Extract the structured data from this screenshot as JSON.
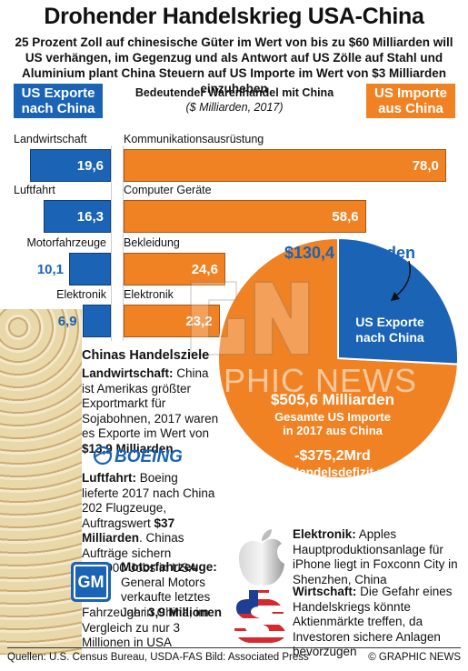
{
  "title": "Drohender Handelskrieg USA-China",
  "subtitle": "25 Prozent Zoll auf chinesische Güter im Wert von bis zu $60 Milliarden will US verhängen, im Gegenzug und als Antwort auf US Zölle auf Stahl und Aluminium plant China Steuern auf US Importe im Wert von $3 Milliarden einzuheben",
  "legend": {
    "exports": "US Exporte nach China",
    "imports": "US Importe aus China"
  },
  "chart_heading": "Bedeutender Warenhandel mit China",
  "chart_unit": "($ Milliarden, 2017)",
  "colors": {
    "exports": "#1a63b5",
    "imports": "#f08223"
  },
  "chart_data": [
    {
      "type": "bar",
      "title": "Bedeutender Warenhandel mit China",
      "subtitle": "($ Milliarden, 2017)",
      "series": [
        {
          "name": "US Exporte nach China",
          "categories": [
            "Landwirtschaft",
            "Luftfahrt",
            "Motorfahrzeuge",
            "Elektronik"
          ],
          "values": [
            19.6,
            16.3,
            10.1,
            6.9
          ],
          "labels": [
            "19,6",
            "16,3",
            "10,1",
            "6,9"
          ]
        },
        {
          "name": "US Importe aus China",
          "categories": [
            "Kommunikationsausrüstung",
            "Computer Geräte",
            "Bekleidung",
            "Elektronik"
          ],
          "values": [
            78.0,
            58.6,
            24.6,
            23.2
          ],
          "labels": [
            "78,0",
            "58,6",
            "24,6",
            "23,2"
          ]
        }
      ]
    },
    {
      "type": "pie",
      "slices": [
        {
          "name": "US Exporte nach China",
          "value": 130.4
        },
        {
          "name": "US Importe in 2017 aus China",
          "value": 375.2
        }
      ]
    }
  ],
  "pie": {
    "exports_value": "$130,4 Milliarden",
    "exports_label": "US Exporte nach China",
    "total_value": "$505,6 Milliarden",
    "total_label": "Gesamte US Importe in 2017 aus China",
    "deficit_value": "-$375,2Mrd",
    "deficit_label": "US Handelsdefizit mit China"
  },
  "goals": {
    "title": "Chinas Handelsziele",
    "agri_head": "Landwirtschaft:",
    "agri_text": "China ist Amerikas größter Exportmarkt für Sojabohnen, 2017 waren es Exporte im Wert von",
    "agri_value": "$13,9 Milliarden",
    "boeing_logo": "BOEING",
    "air_head": "Luftfahrt:",
    "air_text": "Boeing lieferte 2017 nach China 202 Flugzeuge, Auftragswert",
    "air_value": "$37 Milliarden",
    "air_text2": "Chinas Aufträge sichern 150.000 Jobs in USA",
    "gm_logo": "GM",
    "motor_head": "Motorfahrzeuge:",
    "motor_text": "General Motors verkaufte letztes Jahr",
    "motor_value": "3,9 Millionen",
    "motor_text2": "Fahrzeuge in China, im Vergleich zu nur 3 Millionen in USA",
    "elec_head": "Elektronik:",
    "elec_text": "Apples Hauptproduktionsanlage für iPhone liegt in Foxconn City in Shenzhen, China",
    "econ_head": "Wirtschaft:",
    "econ_text": "Die Gefahr eines Handelskriegs könnte Aktienmärkte treffen, da Investoren sichere Anlagen bevorzugen"
  },
  "watermark": "GRAPHIC NEWS",
  "footer": {
    "sources": "Quellen: U.S. Census Bureau, USDA-FAS   Bild: Associated Press",
    "credit": "© GRAPHIC NEWS"
  },
  "icons": [
    "boeing-logo",
    "gm-logo",
    "apple-icon",
    "dollar-flag-icon"
  ]
}
